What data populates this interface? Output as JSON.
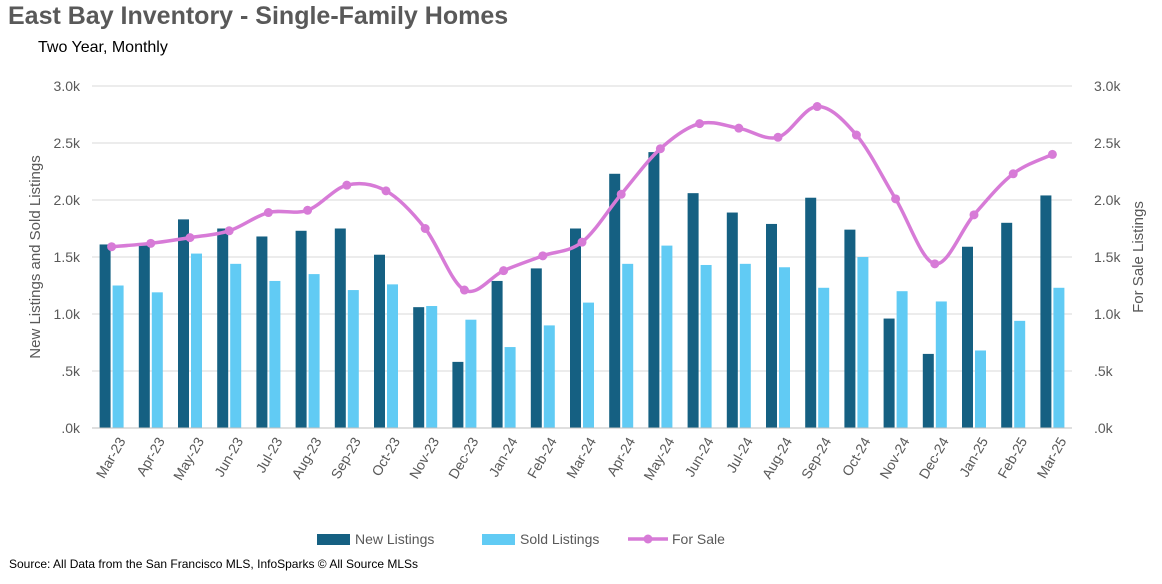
{
  "title": "East Bay Inventory - Single-Family Homes",
  "subtitle": "Two Year, Monthly",
  "source": "Source: All Data from the San Francisco MLS, InfoSparks © All Source MLSs",
  "chart_data": {
    "type": "bar",
    "categories": [
      "Mar-23",
      "Apr-23",
      "May-23",
      "Jun-23",
      "Jul-23",
      "Aug-23",
      "Sep-23",
      "Oct-23",
      "Nov-23",
      "Dec-23",
      "Jan-24",
      "Feb-24",
      "Mar-24",
      "Apr-24",
      "May-24",
      "Jun-24",
      "Jul-24",
      "Aug-24",
      "Sep-24",
      "Oct-24",
      "Nov-24",
      "Dec-24",
      "Jan-25",
      "Feb-25",
      "Mar-25"
    ],
    "series": [
      {
        "name": "New Listings",
        "kind": "bar",
        "axis": "left",
        "color": "#156082",
        "values": [
          1610,
          1600,
          1830,
          1750,
          1680,
          1730,
          1750,
          1520,
          1060,
          580,
          1290,
          1400,
          1750,
          2230,
          2420,
          2060,
          1890,
          1790,
          2020,
          1740,
          960,
          650,
          1590,
          1800,
          2040
        ]
      },
      {
        "name": "Sold Listings",
        "kind": "bar",
        "axis": "left",
        "color": "#61CBF4",
        "values": [
          1250,
          1190,
          1530,
          1440,
          1290,
          1350,
          1210,
          1260,
          1070,
          950,
          710,
          900,
          1100,
          1440,
          1600,
          1430,
          1440,
          1410,
          1230,
          1500,
          1200,
          1110,
          680,
          940,
          1230
        ]
      },
      {
        "name": "For Sale",
        "kind": "line",
        "axis": "right",
        "color": "#D77BD7",
        "values": [
          1590,
          1620,
          1670,
          1730,
          1890,
          1910,
          2130,
          2080,
          1750,
          1210,
          1380,
          1510,
          1630,
          2050,
          2450,
          2670,
          2630,
          2550,
          2820,
          2570,
          2010,
          1440,
          1870,
          2230,
          2400
        ]
      }
    ],
    "y_left": {
      "label": "New Listings and Sold Listings",
      "range": [
        0,
        3000
      ],
      "ticks": [
        ".0k",
        ".5k",
        "1.0k",
        "1.5k",
        "2.0k",
        "2.5k",
        "3.0k"
      ]
    },
    "y_right": {
      "label": "For Sale Listings",
      "range": [
        0,
        3000
      ],
      "ticks": [
        ".0k",
        ".5k",
        "1.0k",
        "1.5k",
        "2.0k",
        "2.5k",
        "3.0k"
      ]
    },
    "grid": "horizontal",
    "legend_position": "bottom"
  }
}
